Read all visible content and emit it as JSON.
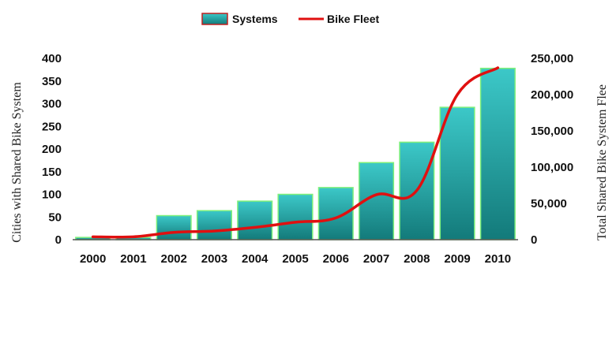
{
  "chart_data": {
    "type": "bar+line",
    "categories": [
      "2000",
      "2001",
      "2002",
      "2003",
      "2004",
      "2005",
      "2006",
      "2007",
      "2008",
      "2009",
      "2010"
    ],
    "series": [
      {
        "name": "Systems",
        "kind": "bar",
        "axis": "left",
        "color": "#2aa8a8",
        "values": [
          5,
          5,
          53,
          64,
          85,
          100,
          115,
          170,
          215,
          292,
          378
        ]
      },
      {
        "name": "Bike Fleet",
        "kind": "line",
        "axis": "right",
        "color": "#e01010",
        "values": [
          4000,
          4000,
          10000,
          12000,
          17000,
          24000,
          30000,
          62000,
          68000,
          200000,
          237000
        ]
      }
    ],
    "left_axis": {
      "label": "Cities with Shared Bike System",
      "ylim": [
        0,
        400
      ],
      "ticks": [
        "0",
        "50",
        "100",
        "150",
        "200",
        "250",
        "300",
        "350",
        "400"
      ]
    },
    "right_axis": {
      "label": "Total Shared Bike System Flee",
      "ylim": [
        0,
        250000
      ],
      "ticks": [
        "0",
        "50,000",
        "100,000",
        "150,000",
        "200,000",
        "250,000"
      ]
    },
    "legend": {
      "position": "top-center",
      "items": [
        "Systems",
        "Bike Fleet"
      ]
    },
    "grid": false,
    "colors": {
      "bar_top": "#3cc8c8",
      "bar_bottom": "#137a7a",
      "bar_stroke": "#7ef07a",
      "line": "#e01010"
    }
  }
}
